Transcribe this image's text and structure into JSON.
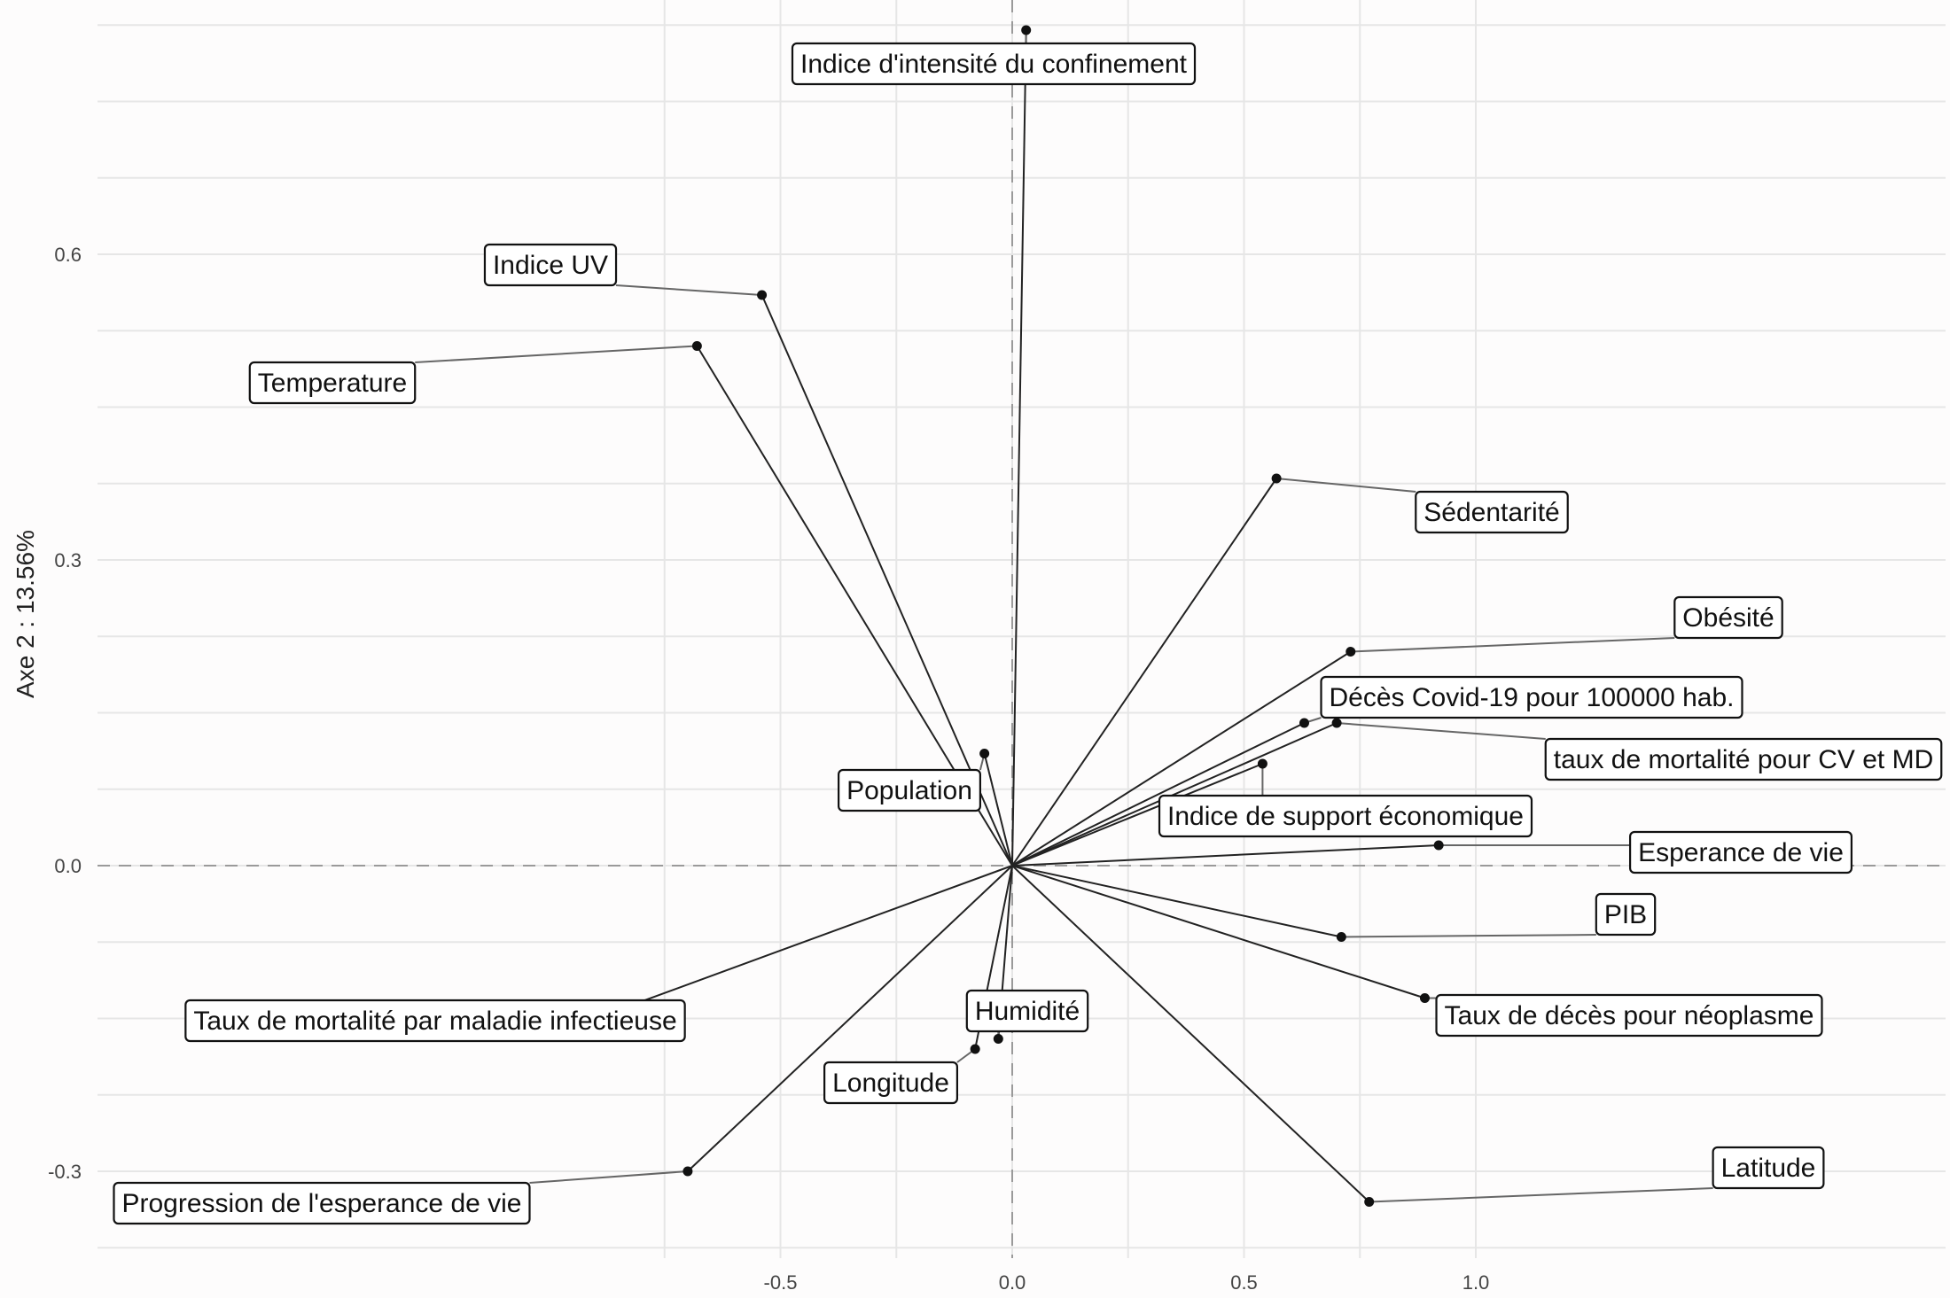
{
  "chart_data": {
    "type": "scatter",
    "subtype": "pca-variable-correlation-plot",
    "title": "",
    "xlabel": "",
    "ylabel": "Axe 2 : 13.56%",
    "xlim": [
      -1.0,
      1.0
    ],
    "ylim": [
      -0.38,
      0.84
    ],
    "x_ticks": [
      -0.5,
      0.0,
      0.5,
      1.0
    ],
    "x_tick_labels": [
      "-0.5",
      "0.0",
      "0.5",
      "1.0"
    ],
    "y_ticks": [
      -0.3,
      0.0,
      0.3,
      0.6
    ],
    "y_tick_labels": [
      "-0.3",
      "0.0",
      "0.3",
      "0.6"
    ],
    "grid": true,
    "reference_lines": {
      "x": 0,
      "y": 0,
      "style": "dashed"
    },
    "variables": [
      {
        "name": "Indice d'intensité du confinement",
        "x": 0.03,
        "y": 0.82
      },
      {
        "name": "Indice UV",
        "x": -0.54,
        "y": 0.56
      },
      {
        "name": "Temperature",
        "x": -0.68,
        "y": 0.51
      },
      {
        "name": "Sédentarité",
        "x": 0.57,
        "y": 0.38
      },
      {
        "name": "Obésité",
        "x": 0.73,
        "y": 0.21
      },
      {
        "name": "Décès Covid-19 pour 100000 hab.",
        "x": 0.63,
        "y": 0.14
      },
      {
        "name": "taux de mortalité pour CV et MD",
        "x": 0.7,
        "y": 0.14
      },
      {
        "name": "Indice de support économique",
        "x": 0.54,
        "y": 0.1
      },
      {
        "name": "Population",
        "x": -0.06,
        "y": 0.11
      },
      {
        "name": "Esperance de vie",
        "x": 0.92,
        "y": 0.02
      },
      {
        "name": "PIB",
        "x": 0.71,
        "y": -0.07
      },
      {
        "name": "Taux de décès pour néoplasme",
        "x": 0.89,
        "y": -0.13
      },
      {
        "name": "Latitude",
        "x": 0.77,
        "y": -0.33
      },
      {
        "name": "Humidité",
        "x": -0.03,
        "y": -0.17
      },
      {
        "name": "Longitude",
        "x": -0.08,
        "y": -0.18
      },
      {
        "name": "Taux de mortalité par maladie infectieuse",
        "x": -0.9,
        "y": -0.15
      },
      {
        "name": "Progression de l'esperance de vie",
        "x": -0.7,
        "y": -0.3
      }
    ]
  }
}
